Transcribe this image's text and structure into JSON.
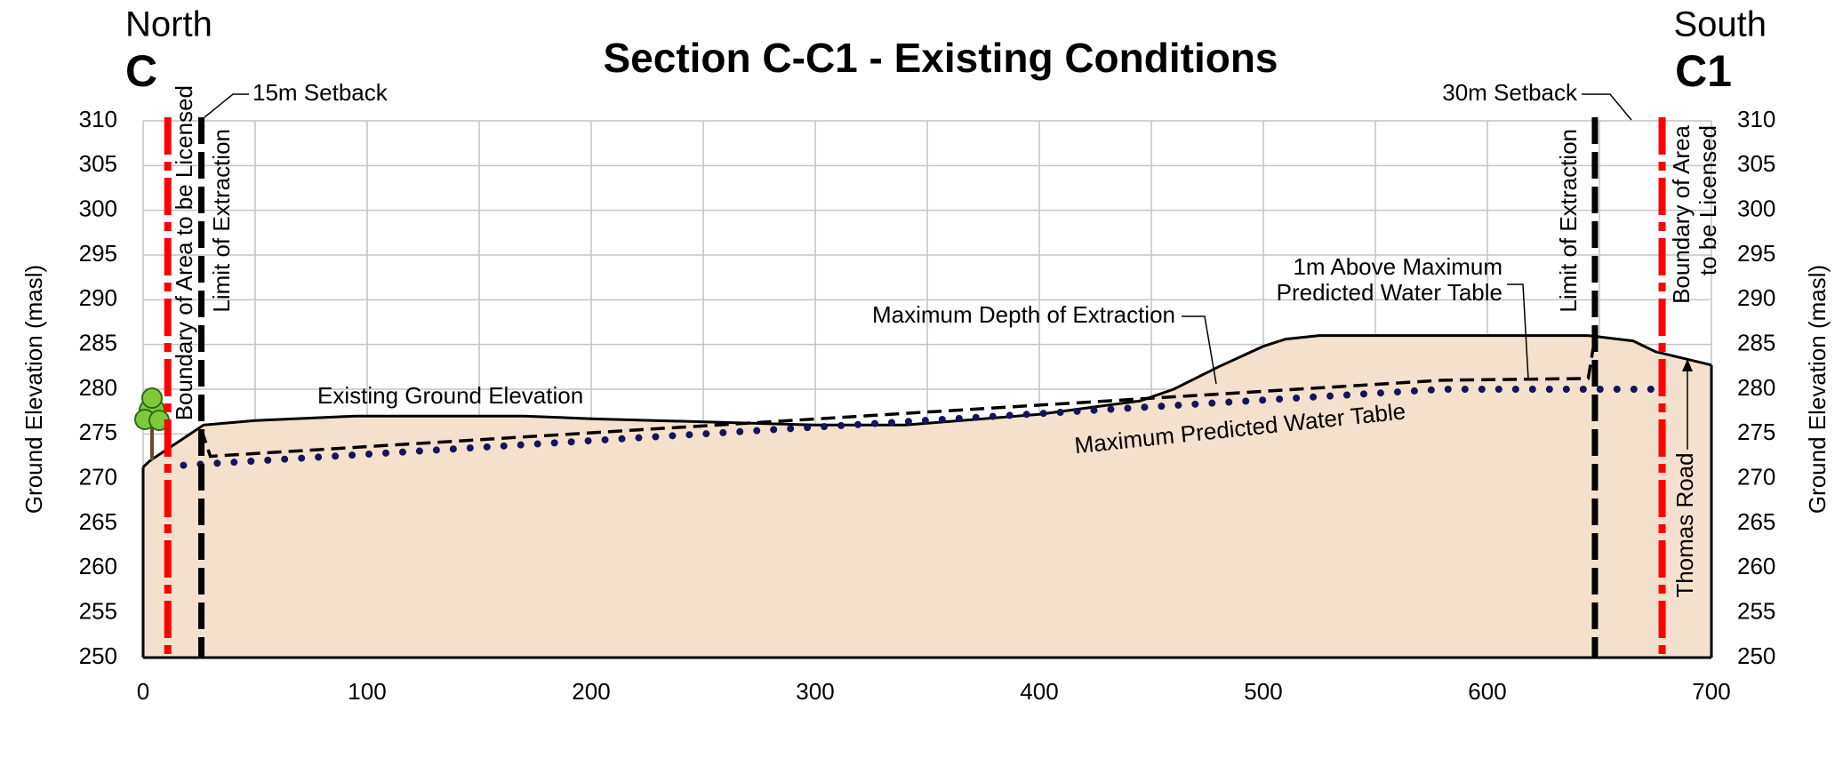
{
  "chart_data": {
    "type": "section",
    "title": "Section C-C1 - Existing Conditions",
    "left_label": {
      "direction": "North",
      "letter": "C"
    },
    "right_label": {
      "direction": "South",
      "letter": "C1"
    },
    "ylabel": "Ground Elevation (masl)",
    "y2label": "Ground Elevation (masl)",
    "xlim": [
      0,
      700
    ],
    "ylim": [
      250,
      310
    ],
    "xticks": [
      0,
      100,
      200,
      300,
      400,
      500,
      600,
      700
    ],
    "x_grid": [
      0,
      50,
      100,
      150,
      200,
      250,
      300,
      350,
      400,
      450,
      500,
      550,
      600,
      650,
      700
    ],
    "yticks": [
      250,
      255,
      260,
      265,
      270,
      275,
      280,
      285,
      290,
      295,
      300,
      305,
      310
    ],
    "grid": true,
    "ground_fill": "#f3e0cd",
    "series": [
      {
        "name": "Existing Ground Elevation",
        "color": "#000000",
        "style": "solid",
        "x": [
          0,
          3,
          15,
          27,
          50,
          95,
          170,
          200,
          300,
          340,
          400,
          445,
          460,
          480,
          500,
          510,
          525,
          645,
          665,
          675,
          700
        ],
        "values": [
          271.3,
          272,
          274,
          276,
          276.5,
          277,
          277,
          276.7,
          276,
          276,
          277.2,
          278.7,
          280,
          282.5,
          284.8,
          285.6,
          286,
          286,
          285.4,
          284.2,
          282.7
        ]
      },
      {
        "name": "Maximum Depth of Extraction",
        "color": "#000000",
        "style": "dashed",
        "x": [
          26,
          30,
          580,
          645,
          648
        ],
        "values": [
          275.5,
          272.5,
          281,
          281.2,
          285.8
        ]
      },
      {
        "name": "Maximum Predicted Water Table",
        "color": "#14145a",
        "style": "dotted",
        "x": [
          18,
          580,
          675
        ],
        "values": [
          271.5,
          280,
          280
        ]
      }
    ],
    "vertical_lines": [
      {
        "label": [
          "Boundary of Area to be Licensed"
        ],
        "x": 11,
        "color": "#ff0000",
        "style": "dashdot"
      },
      {
        "label": [
          "Limit of Extraction"
        ],
        "x": 26,
        "color": "#000000",
        "style": "dashed"
      },
      {
        "label": [
          "Limit of Extraction"
        ],
        "x": 648,
        "color": "#000000",
        "style": "dashed"
      },
      {
        "label": [
          "Boundary of Area",
          "to be Licensed"
        ],
        "x": 678,
        "color": "#ff0000",
        "style": "dashdot"
      }
    ],
    "annotations": [
      {
        "text": [
          "15m Setback"
        ]
      },
      {
        "text": [
          "30m Setback"
        ]
      },
      {
        "text": [
          "1m Above Maximum",
          "Predicted Water Table"
        ]
      },
      {
        "text": [
          "Thomas Road"
        ]
      }
    ]
  }
}
